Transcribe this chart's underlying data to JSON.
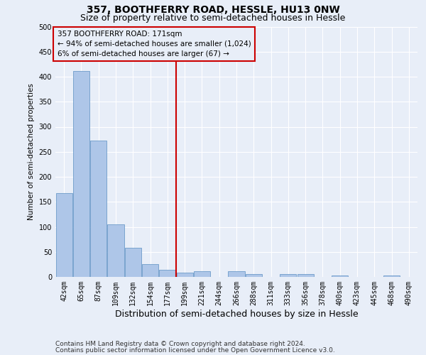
{
  "title1": "357, BOOTHFERRY ROAD, HESSLE, HU13 0NW",
  "title2": "Size of property relative to semi-detached houses in Hessle",
  "xlabel": "Distribution of semi-detached houses by size in Hessle",
  "ylabel": "Number of semi-detached properties",
  "bar_labels": [
    "42sqm",
    "65sqm",
    "87sqm",
    "109sqm",
    "132sqm",
    "154sqm",
    "177sqm",
    "199sqm",
    "221sqm",
    "244sqm",
    "266sqm",
    "288sqm",
    "311sqm",
    "333sqm",
    "356sqm",
    "378sqm",
    "400sqm",
    "423sqm",
    "445sqm",
    "468sqm",
    "490sqm"
  ],
  "bar_values": [
    168,
    411,
    272,
    105,
    58,
    25,
    14,
    8,
    11,
    0,
    11,
    6,
    0,
    5,
    5,
    0,
    3,
    0,
    0,
    3,
    0
  ],
  "bar_color": "#aec6e8",
  "bar_edge_color": "#5a8fc2",
  "highlight_index": 6,
  "highlight_color": "#cc0000",
  "annotation_line1": "357 BOOTHFERRY ROAD: 171sqm",
  "annotation_line2": "← 94% of semi-detached houses are smaller (1,024)",
  "annotation_line3": "6% of semi-detached houses are larger (67) →",
  "annotation_box_color": "#cc0000",
  "ylim": [
    0,
    500
  ],
  "yticks": [
    0,
    50,
    100,
    150,
    200,
    250,
    300,
    350,
    400,
    450,
    500
  ],
  "footer1": "Contains HM Land Registry data © Crown copyright and database right 2024.",
  "footer2": "Contains public sector information licensed under the Open Government Licence v3.0.",
  "background_color": "#e8eef8",
  "grid_color": "#ffffff",
  "title1_fontsize": 10,
  "title2_fontsize": 9,
  "tick_fontsize": 7,
  "ylabel_fontsize": 7.5,
  "xlabel_fontsize": 9,
  "footer_fontsize": 6.5
}
